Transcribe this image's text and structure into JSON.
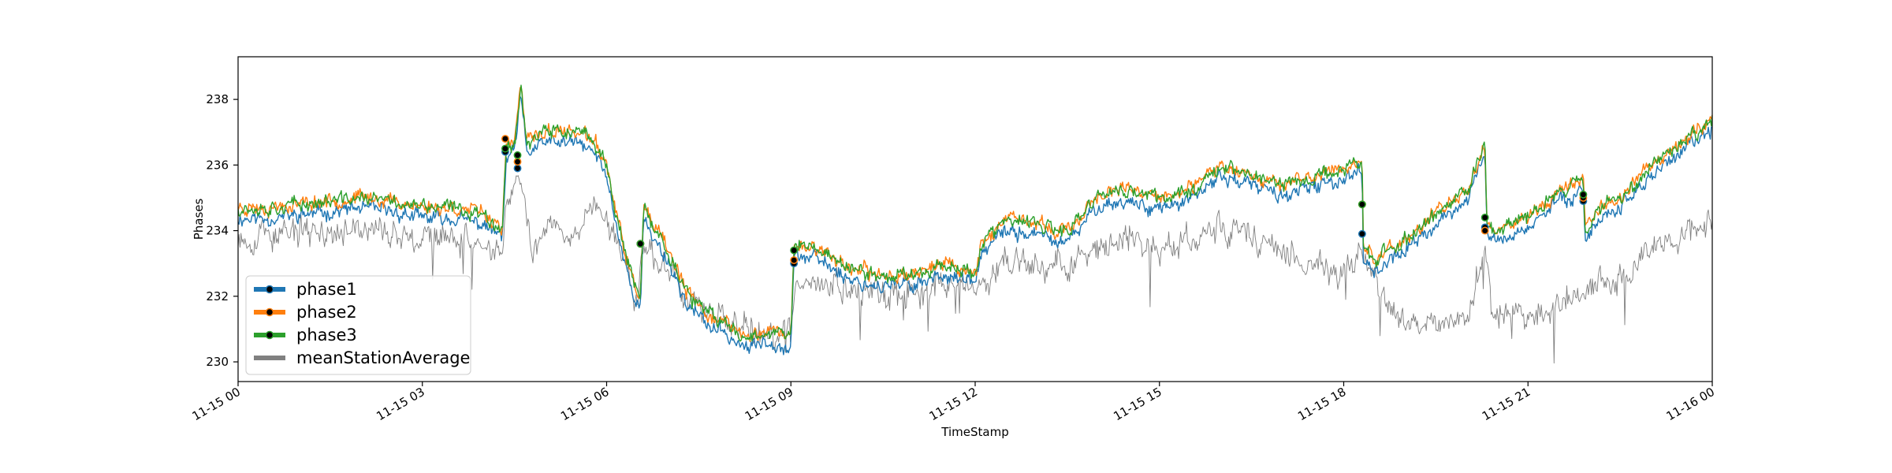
{
  "chart_data": {
    "type": "line",
    "xlabel": "TimeStamp",
    "ylabel": "Phases",
    "xlim": [
      "11-15 00:00",
      "11-16 00:00"
    ],
    "ylim": [
      229.4,
      239.3
    ],
    "xticks": [
      {
        "hours": 0,
        "label": "11-15 00"
      },
      {
        "hours": 3,
        "label": "11-15 03"
      },
      {
        "hours": 6,
        "label": "11-15 06"
      },
      {
        "hours": 9,
        "label": "11-15 09"
      },
      {
        "hours": 12,
        "label": "11-15 12"
      },
      {
        "hours": 15,
        "label": "11-15 15"
      },
      {
        "hours": 18,
        "label": "11-15 18"
      },
      {
        "hours": 21,
        "label": "11-15 21"
      },
      {
        "hours": 24,
        "label": "11-16 00"
      }
    ],
    "yticks": [
      230,
      232,
      234,
      236,
      238
    ],
    "grid": false,
    "legend_position": "lower-left",
    "series": [
      {
        "name": "phase1",
        "color": "#1f77b4",
        "noise": 0.28,
        "seed": 11,
        "offset": -0.22,
        "points": [
          [
            0,
            234.6
          ],
          [
            0.5,
            234.6
          ],
          [
            1,
            234.7
          ],
          [
            1.5,
            234.8
          ],
          [
            2,
            234.9
          ],
          [
            2.5,
            234.8
          ],
          [
            3,
            234.6
          ],
          [
            3.5,
            234.6
          ],
          [
            4,
            234.4
          ],
          [
            4.3,
            234.0
          ],
          [
            4.37,
            236.4
          ],
          [
            4.5,
            236.6
          ],
          [
            4.6,
            238.3
          ],
          [
            4.7,
            236.6
          ],
          [
            5,
            236.9
          ],
          [
            5.5,
            236.9
          ],
          [
            5.8,
            236.6
          ],
          [
            6,
            235.9
          ],
          [
            6.2,
            234.0
          ],
          [
            6.4,
            232.5
          ],
          [
            6.55,
            231.8
          ],
          [
            6.6,
            234.5
          ],
          [
            7,
            233.3
          ],
          [
            7.3,
            232.0
          ],
          [
            7.6,
            231.4
          ],
          [
            8,
            231.0
          ],
          [
            8.3,
            230.6
          ],
          [
            8.6,
            230.9
          ],
          [
            8.9,
            230.7
          ],
          [
            9,
            230.6
          ],
          [
            9.05,
            233.5
          ],
          [
            9.5,
            233.3
          ],
          [
            10,
            232.7
          ],
          [
            10.5,
            232.5
          ],
          [
            11,
            232.6
          ],
          [
            11.5,
            232.9
          ],
          [
            12,
            232.6
          ],
          [
            12.1,
            233.5
          ],
          [
            12.5,
            234.2
          ],
          [
            13,
            234.1
          ],
          [
            13.5,
            233.8
          ],
          [
            14,
            235.0
          ],
          [
            14.5,
            235.1
          ],
          [
            15,
            234.9
          ],
          [
            15.5,
            235.1
          ],
          [
            16,
            235.9
          ],
          [
            16.5,
            235.6
          ],
          [
            17,
            235.3
          ],
          [
            17.5,
            235.5
          ],
          [
            18,
            235.8
          ],
          [
            18.3,
            236.1
          ],
          [
            18.32,
            233.4
          ],
          [
            18.5,
            233.0
          ],
          [
            19,
            233.6
          ],
          [
            19.5,
            234.4
          ],
          [
            20,
            235.1
          ],
          [
            20.3,
            236.6
          ],
          [
            20.33,
            234.1
          ],
          [
            20.5,
            233.9
          ],
          [
            21,
            234.3
          ],
          [
            21.5,
            235.1
          ],
          [
            21.9,
            235.5
          ],
          [
            21.93,
            234.0
          ],
          [
            22.3,
            234.8
          ],
          [
            22.5,
            234.9
          ],
          [
            23,
            235.9
          ],
          [
            23.5,
            236.6
          ],
          [
            24,
            237.3
          ]
        ]
      },
      {
        "name": "phase2",
        "color": "#ff7f0e",
        "noise": 0.28,
        "seed": 23,
        "offset": 0.12,
        "points": [
          [
            0,
            234.6
          ],
          [
            0.5,
            234.6
          ],
          [
            1,
            234.7
          ],
          [
            1.5,
            234.8
          ],
          [
            2,
            234.9
          ],
          [
            2.5,
            234.8
          ],
          [
            3,
            234.6
          ],
          [
            3.5,
            234.6
          ],
          [
            4,
            234.4
          ],
          [
            4.3,
            234.0
          ],
          [
            4.37,
            236.4
          ],
          [
            4.5,
            236.6
          ],
          [
            4.6,
            238.3
          ],
          [
            4.7,
            236.6
          ],
          [
            5,
            236.9
          ],
          [
            5.5,
            236.9
          ],
          [
            5.8,
            236.6
          ],
          [
            6,
            235.9
          ],
          [
            6.2,
            234.0
          ],
          [
            6.4,
            232.5
          ],
          [
            6.55,
            231.8
          ],
          [
            6.6,
            234.5
          ],
          [
            7,
            233.3
          ],
          [
            7.3,
            232.0
          ],
          [
            7.6,
            231.4
          ],
          [
            8,
            231.0
          ],
          [
            8.3,
            230.6
          ],
          [
            8.6,
            230.9
          ],
          [
            8.9,
            230.7
          ],
          [
            9,
            230.6
          ],
          [
            9.05,
            233.5
          ],
          [
            9.5,
            233.3
          ],
          [
            10,
            232.7
          ],
          [
            10.5,
            232.5
          ],
          [
            11,
            232.6
          ],
          [
            11.5,
            232.9
          ],
          [
            12,
            232.6
          ],
          [
            12.1,
            233.5
          ],
          [
            12.5,
            234.2
          ],
          [
            13,
            234.1
          ],
          [
            13.5,
            233.8
          ],
          [
            14,
            235.0
          ],
          [
            14.5,
            235.1
          ],
          [
            15,
            234.9
          ],
          [
            15.5,
            235.1
          ],
          [
            16,
            235.9
          ],
          [
            16.5,
            235.6
          ],
          [
            17,
            235.3
          ],
          [
            17.5,
            235.5
          ],
          [
            18,
            235.8
          ],
          [
            18.3,
            236.1
          ],
          [
            18.32,
            233.4
          ],
          [
            18.5,
            233.0
          ],
          [
            19,
            233.6
          ],
          [
            19.5,
            234.4
          ],
          [
            20,
            235.1
          ],
          [
            20.3,
            236.6
          ],
          [
            20.33,
            234.1
          ],
          [
            20.5,
            233.9
          ],
          [
            21,
            234.3
          ],
          [
            21.5,
            235.1
          ],
          [
            21.9,
            235.5
          ],
          [
            21.93,
            234.0
          ],
          [
            22.3,
            234.8
          ],
          [
            22.5,
            234.9
          ],
          [
            23,
            235.9
          ],
          [
            23.5,
            236.6
          ],
          [
            24,
            237.3
          ]
        ]
      },
      {
        "name": "phase3",
        "color": "#2ca02c",
        "noise": 0.28,
        "seed": 37,
        "offset": 0.1,
        "points": [
          [
            0,
            234.6
          ],
          [
            0.5,
            234.6
          ],
          [
            1,
            234.7
          ],
          [
            1.5,
            234.8
          ],
          [
            2,
            234.9
          ],
          [
            2.5,
            234.8
          ],
          [
            3,
            234.6
          ],
          [
            3.5,
            234.6
          ],
          [
            4,
            234.4
          ],
          [
            4.3,
            234.0
          ],
          [
            4.37,
            236.4
          ],
          [
            4.5,
            236.6
          ],
          [
            4.6,
            238.3
          ],
          [
            4.7,
            236.6
          ],
          [
            5,
            236.9
          ],
          [
            5.5,
            236.9
          ],
          [
            5.8,
            236.6
          ],
          [
            6,
            235.9
          ],
          [
            6.2,
            234.0
          ],
          [
            6.4,
            232.5
          ],
          [
            6.55,
            231.8
          ],
          [
            6.6,
            234.5
          ],
          [
            7,
            233.3
          ],
          [
            7.3,
            232.0
          ],
          [
            7.6,
            231.4
          ],
          [
            8,
            231.0
          ],
          [
            8.3,
            230.6
          ],
          [
            8.6,
            230.9
          ],
          [
            8.9,
            230.7
          ],
          [
            9,
            230.6
          ],
          [
            9.05,
            233.5
          ],
          [
            9.5,
            233.3
          ],
          [
            10,
            232.7
          ],
          [
            10.5,
            232.5
          ],
          [
            11,
            232.6
          ],
          [
            11.5,
            232.9
          ],
          [
            12,
            232.6
          ],
          [
            12.1,
            233.5
          ],
          [
            12.5,
            234.2
          ],
          [
            13,
            234.1
          ],
          [
            13.5,
            233.8
          ],
          [
            14,
            235.0
          ],
          [
            14.5,
            235.1
          ],
          [
            15,
            234.9
          ],
          [
            15.5,
            235.1
          ],
          [
            16,
            235.9
          ],
          [
            16.5,
            235.6
          ],
          [
            17,
            235.3
          ],
          [
            17.5,
            235.5
          ],
          [
            18,
            235.8
          ],
          [
            18.3,
            236.1
          ],
          [
            18.32,
            233.4
          ],
          [
            18.5,
            233.0
          ],
          [
            19,
            233.6
          ],
          [
            19.5,
            234.4
          ],
          [
            20,
            235.1
          ],
          [
            20.3,
            236.6
          ],
          [
            20.33,
            234.1
          ],
          [
            20.5,
            233.9
          ],
          [
            21,
            234.3
          ],
          [
            21.5,
            235.1
          ],
          [
            21.9,
            235.5
          ],
          [
            21.93,
            234.0
          ],
          [
            22.3,
            234.8
          ],
          [
            22.5,
            234.9
          ],
          [
            23,
            235.9
          ],
          [
            23.5,
            236.6
          ],
          [
            24,
            237.3
          ]
        ]
      },
      {
        "name": "meanStationAverage",
        "color": "#808080",
        "noise": 0.55,
        "seed": 53,
        "offset": 0,
        "points": [
          [
            0,
            233.8
          ],
          [
            1,
            233.9
          ],
          [
            2,
            234.0
          ],
          [
            3,
            233.9
          ],
          [
            4,
            233.6
          ],
          [
            4.3,
            233.3
          ],
          [
            4.4,
            235.0
          ],
          [
            4.6,
            235.6
          ],
          [
            4.8,
            233.0
          ],
          [
            5,
            234.2
          ],
          [
            5.5,
            234.0
          ],
          [
            5.8,
            235.1
          ],
          [
            6,
            234.3
          ],
          [
            6.3,
            233.0
          ],
          [
            6.5,
            232.0
          ],
          [
            6.6,
            233.5
          ],
          [
            7,
            232.6
          ],
          [
            7.5,
            231.6
          ],
          [
            8,
            231.2
          ],
          [
            8.5,
            230.8
          ],
          [
            9,
            230.8
          ],
          [
            9.1,
            232.3
          ],
          [
            9.5,
            232.3
          ],
          [
            10,
            232.2
          ],
          [
            10.5,
            232.0
          ],
          [
            11,
            232.2
          ],
          [
            11.5,
            232.4
          ],
          [
            12,
            232.3
          ],
          [
            12.5,
            233.2
          ],
          [
            13,
            233.0
          ],
          [
            13.5,
            233.0
          ],
          [
            14,
            233.5
          ],
          [
            14.5,
            233.8
          ],
          [
            15,
            233.6
          ],
          [
            15.5,
            233.8
          ],
          [
            16,
            234.2
          ],
          [
            16.5,
            233.8
          ],
          [
            17,
            233.5
          ],
          [
            17.5,
            233.0
          ],
          [
            18,
            232.7
          ],
          [
            18.3,
            233.3
          ],
          [
            18.6,
            232.2
          ],
          [
            19,
            231.2
          ],
          [
            19.5,
            231.0
          ],
          [
            20,
            231.3
          ],
          [
            20.3,
            233.3
          ],
          [
            20.4,
            231.5
          ],
          [
            21,
            231.3
          ],
          [
            21.5,
            231.8
          ],
          [
            22,
            232.3
          ],
          [
            22.5,
            232.6
          ],
          [
            23,
            233.3
          ],
          [
            23.5,
            233.8
          ],
          [
            24,
            234.5
          ]
        ]
      }
    ],
    "markers": [
      {
        "series": "phase1",
        "points": [
          [
            4.35,
            236.4
          ],
          [
            4.55,
            235.9
          ],
          [
            6.55,
            233.6
          ],
          [
            9.05,
            233.0
          ],
          [
            18.3,
            233.9
          ],
          [
            20.3,
            234.1
          ],
          [
            21.9,
            234.9
          ]
        ]
      },
      {
        "series": "phase2",
        "points": [
          [
            4.35,
            236.8
          ],
          [
            4.55,
            236.1
          ],
          [
            6.55,
            233.6
          ],
          [
            9.05,
            233.1
          ],
          [
            18.3,
            234.8
          ],
          [
            20.3,
            234.0
          ],
          [
            21.9,
            235.0
          ]
        ]
      },
      {
        "series": "phase3",
        "points": [
          [
            4.35,
            236.5
          ],
          [
            4.55,
            236.3
          ],
          [
            6.55,
            233.6
          ],
          [
            9.05,
            233.4
          ],
          [
            18.3,
            234.8
          ],
          [
            20.3,
            234.4
          ],
          [
            21.9,
            235.1
          ]
        ]
      }
    ]
  }
}
